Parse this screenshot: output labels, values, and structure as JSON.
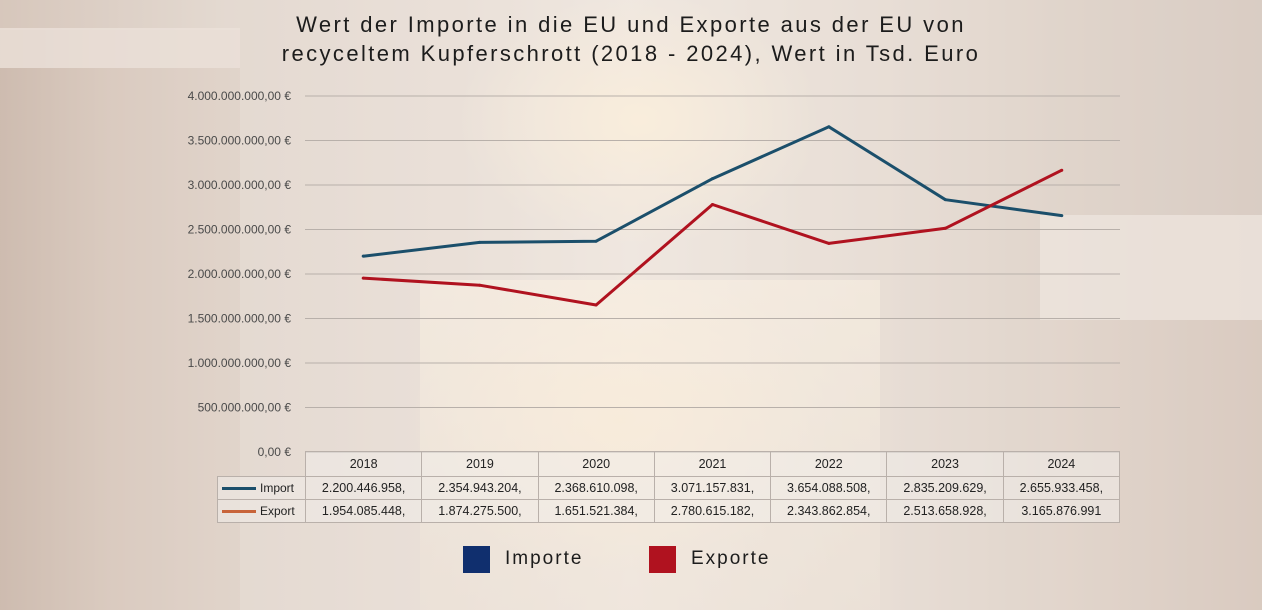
{
  "title_lines": [
    "Wert der Importe in die EU und Exporte aus der EU von",
    "recyceltem Kupferschrott (2018 - 2024), Wert in Tsd. Euro"
  ],
  "chart_data": {
    "type": "line",
    "title": "Wert der Importe in die EU und Exporte aus der EU von recyceltem Kupferschrott (2018 - 2024), Wert in Tsd. Euro",
    "categories": [
      "2018",
      "2019",
      "2020",
      "2021",
      "2022",
      "2023",
      "2024"
    ],
    "y_ticks": [
      "0,00 €",
      "500.000.000,00 €",
      "1.000.000.000,00 €",
      "1.500.000.000,00 €",
      "2.000.000.000,00 €",
      "2.500.000.000,00 €",
      "3.000.000.000,00 €",
      "3.500.000.000,00 €",
      "4.000.000.000,00 €"
    ],
    "ylim": [
      0,
      4000000000
    ],
    "grid": true,
    "series": [
      {
        "name": "Import",
        "color": "#1b4f6b",
        "values": [
          2200446958,
          2354943204,
          2368610098,
          3071157831,
          3654088508,
          2835209629,
          2655933458
        ],
        "labels": [
          "2.200.446.958,",
          "2.354.943.204,",
          "2.368.610.098,",
          "3.071.157.831,",
          "3.654.088.508,",
          "2.835.209.629,",
          "2.655.933.458,"
        ],
        "table_swatch": "#1b4f6b"
      },
      {
        "name": "Export",
        "color": "#b0121f",
        "values": [
          1954085448,
          1874275500,
          1651521384,
          2780615182,
          2343862854,
          2513658928,
          3165876991
        ],
        "labels": [
          "1.954.085.448,",
          "1.874.275.500,",
          "1.651.521.384,",
          "2.780.615.182,",
          "2.343.862.854,",
          "2.513.658.928,",
          "3.165.876.991"
        ],
        "table_swatch": "#c8643a"
      }
    ],
    "legend": [
      {
        "label": "Importe",
        "color": "#102f6e"
      },
      {
        "label": "Exporte",
        "color": "#b0121f"
      }
    ],
    "legend_position": "bottom"
  }
}
